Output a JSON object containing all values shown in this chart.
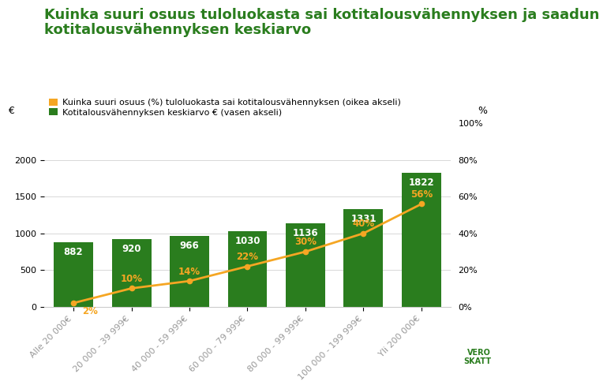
{
  "title_line1": "Kuinka suuri osuus tuloluokasta sai kotitalousvähennyksen ja saadun",
  "title_line2": "kotitalousvähennyksen keskiarvo",
  "categories": [
    "Alle 20 000€",
    "20 000 - 39 999€",
    "40 000 - 59 999€",
    "60 000 - 79 999€",
    "80 000 - 99 999€",
    "100 000 - 199 999€",
    "Yli 200 000€"
  ],
  "bar_values": [
    882,
    920,
    966,
    1030,
    1136,
    1331,
    1822
  ],
  "line_values": [
    2,
    10,
    14,
    22,
    30,
    40,
    56
  ],
  "bar_color": "#2a7d1e",
  "line_color": "#f5a623",
  "bar_label_color": "#ffffff",
  "line_label_color": "#f5a623",
  "background_color": "#ffffff",
  "title_color": "#2a7d1e",
  "xtick_color": "#999999",
  "legend_orange_label": "Kuinka suuri osuus (%) tuloluokasta sai kotitalousvähennyksen (oikea akseli)",
  "legend_green_label": "Kotitalousvähennyksen keskiarvo € (vasen akseli)",
  "left_axis_label": "€",
  "right_axis_label": "%",
  "left_ylim": [
    0,
    2500
  ],
  "right_ylim": [
    0,
    100
  ],
  "left_yticks": [
    0,
    500,
    1000,
    1500,
    2000
  ],
  "right_yticks": [
    0,
    20,
    40,
    60,
    80,
    100
  ],
  "right_yticklabels": [
    "0%",
    "20%",
    "40%",
    "60%",
    "80%",
    "100%"
  ],
  "title_fontsize": 13,
  "axis_label_fontsize": 9,
  "bar_label_fontsize": 8.5,
  "line_label_fontsize": 8.5,
  "legend_fontsize": 8,
  "tick_label_fontsize": 8
}
